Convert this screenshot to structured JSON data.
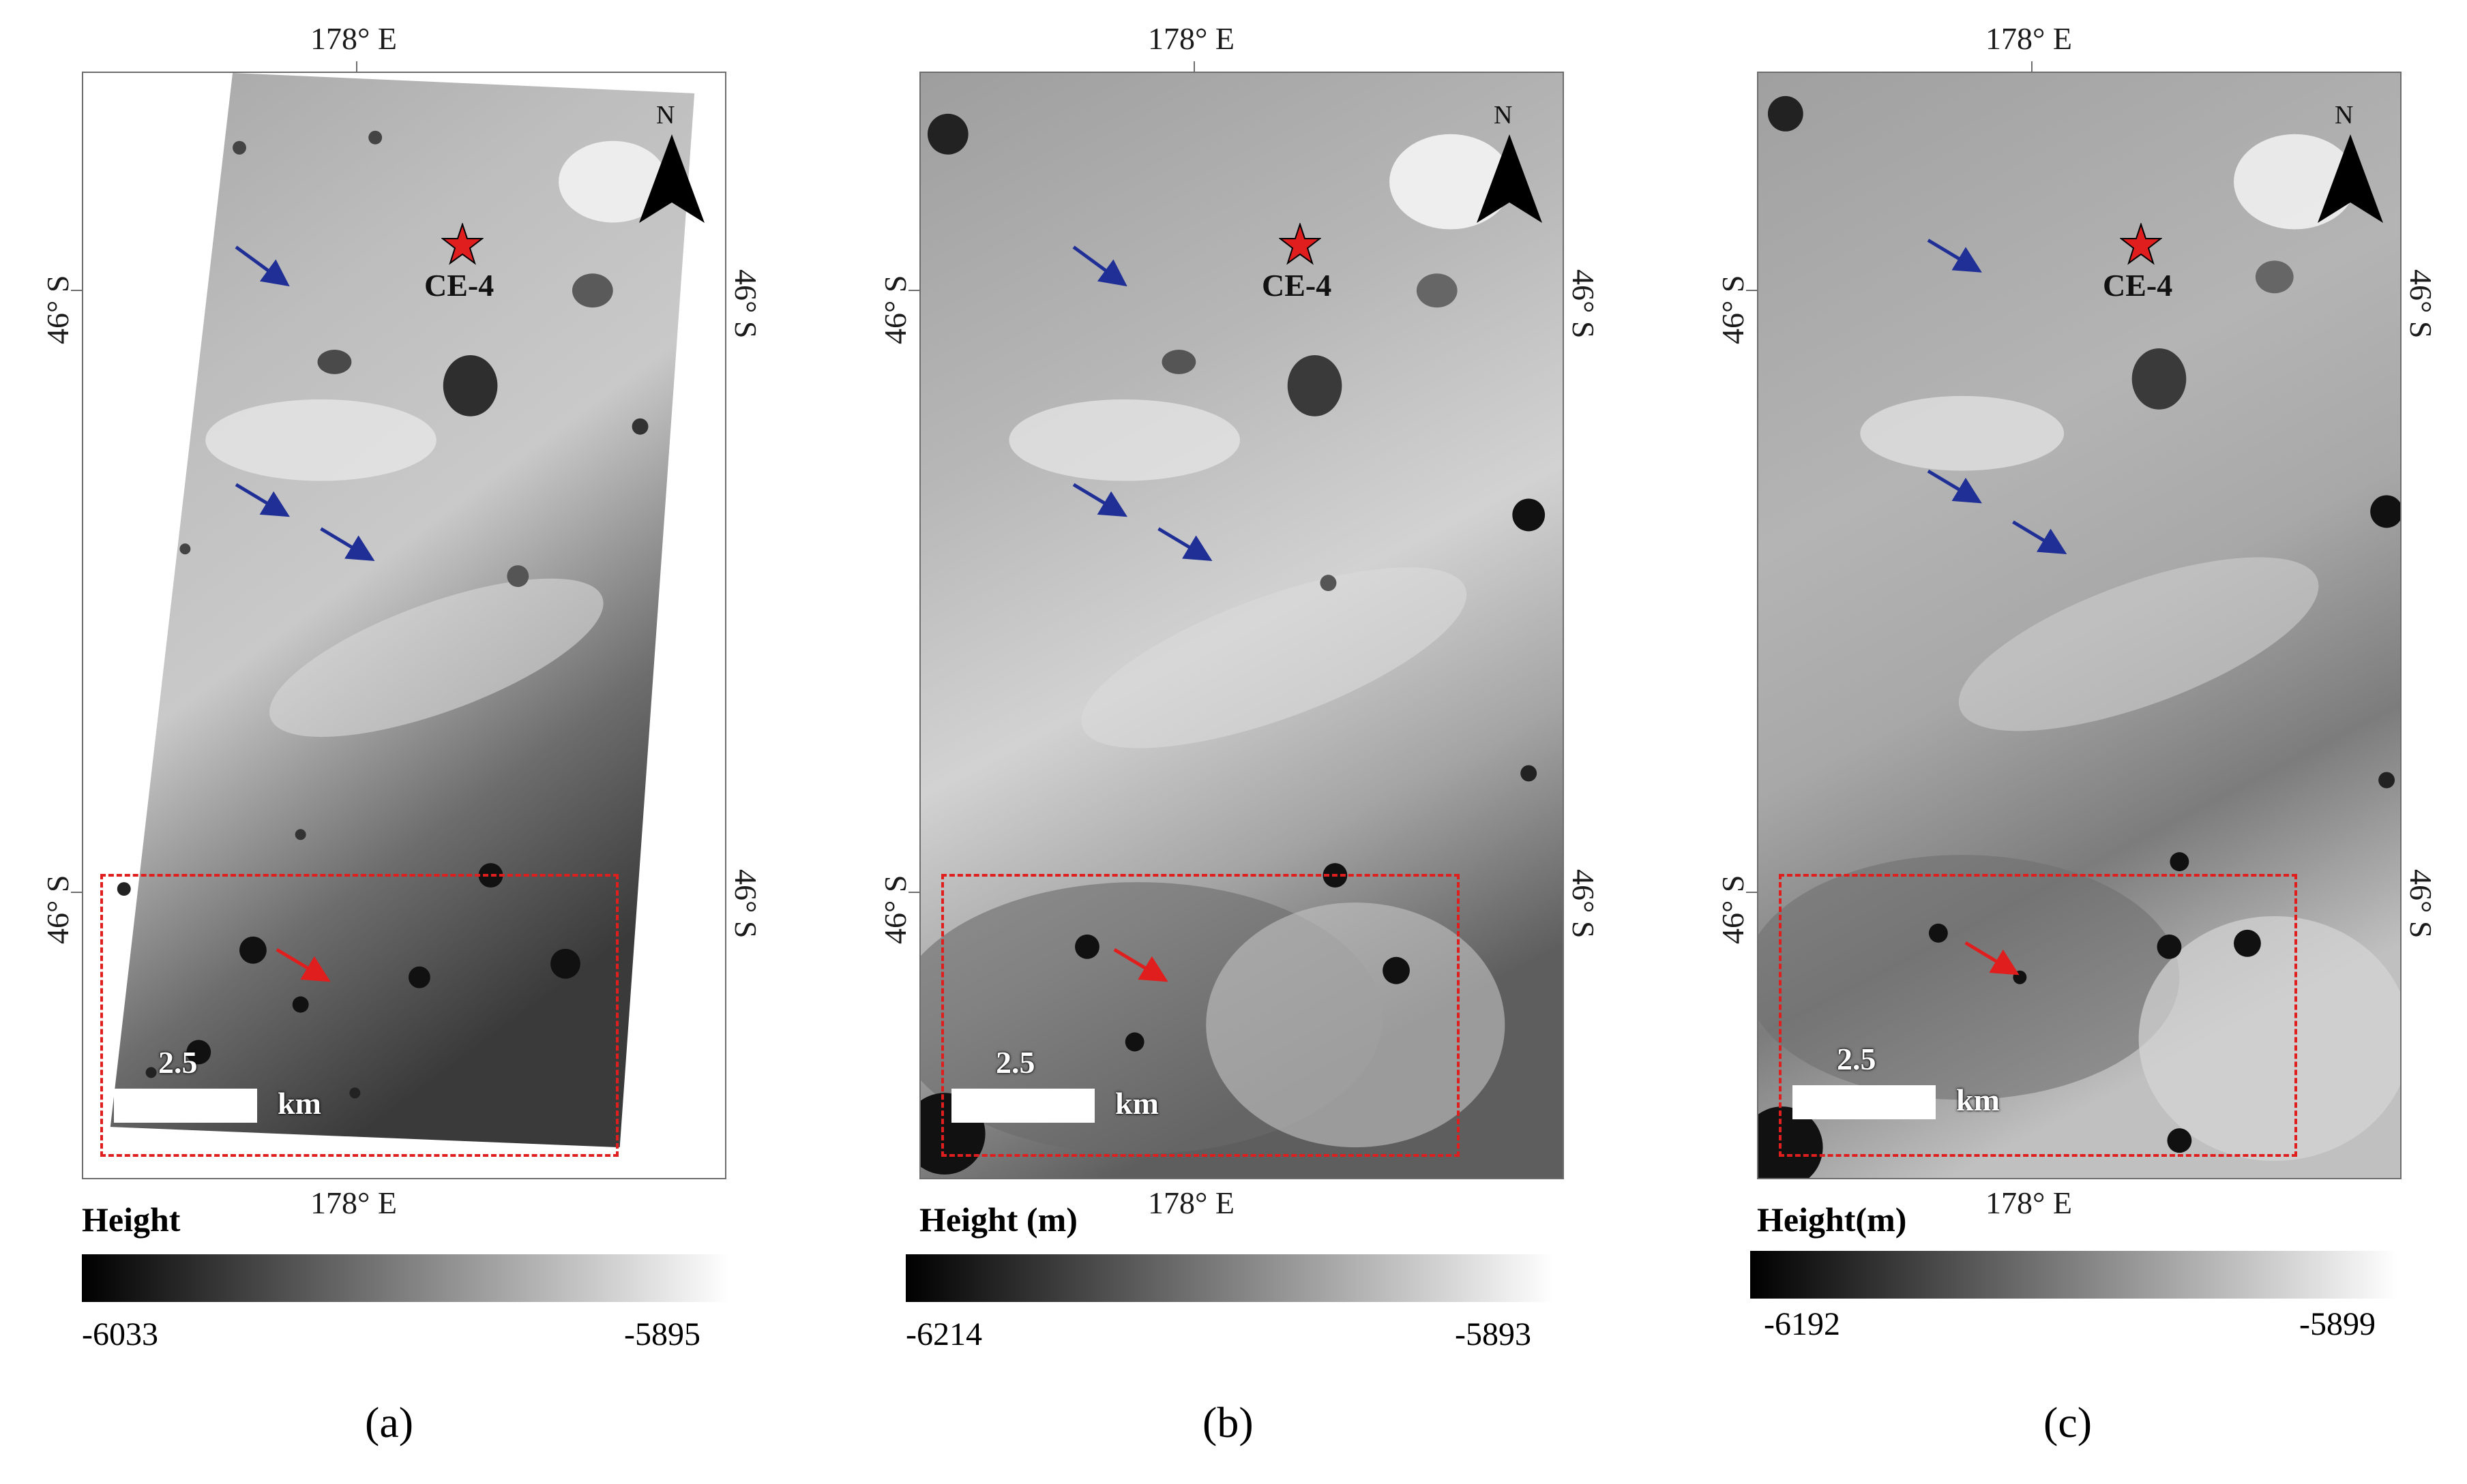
{
  "panels": [
    {
      "id": "a",
      "label": "(a)",
      "top_lon": "178° E",
      "bottom_lon": "178° E",
      "left_lat_upper": "46° S",
      "left_lat_lower": "46° S",
      "right_lat_upper": "46° S",
      "right_lat_lower": "46° S",
      "landing_site": "CE-4",
      "north": "N",
      "scale_value": "2.5",
      "scale_unit": "km",
      "legend_title": "Height",
      "legend_min": "-6033",
      "legend_max": "-5895",
      "colors": {
        "ramp_start": "#000000",
        "ramp_end": "#ffffff",
        "roi": "#e01e1e",
        "arrow_blue": "#1f2f96",
        "arrow_red": "#e01e1e",
        "star": "#e01e1e"
      }
    },
    {
      "id": "b",
      "label": "(b)",
      "top_lon": "178° E",
      "bottom_lon": "178° E",
      "left_lat_upper": "46° S",
      "left_lat_lower": "46° S",
      "right_lat_upper": "46° S",
      "right_lat_lower": "46° S",
      "landing_site": "CE-4",
      "north": "N",
      "scale_value": "2.5",
      "scale_unit": "km",
      "legend_title": "Height (m)",
      "legend_min": "-6214",
      "legend_max": "-5893",
      "colors": {
        "ramp_start": "#000000",
        "ramp_end": "#ffffff",
        "roi": "#e01e1e",
        "arrow_blue": "#1f2f96",
        "arrow_red": "#e01e1e",
        "star": "#e01e1e"
      }
    },
    {
      "id": "c",
      "label": "(c)",
      "top_lon": "178° E",
      "bottom_lon": "178° E",
      "left_lat_upper": "46° S",
      "left_lat_lower": "46° S",
      "right_lat_upper": "46° S",
      "right_lat_lower": "46° S",
      "landing_site": "CE-4",
      "north": "N",
      "scale_value": "2.5",
      "scale_unit": "km",
      "legend_title": "Height(m)",
      "legend_min": "-6192",
      "legend_max": "-5899",
      "colors": {
        "ramp_start": "#000000",
        "ramp_end": "#ffffff",
        "roi": "#e01e1e",
        "arrow_blue": "#1f2f96",
        "arrow_red": "#e01e1e",
        "star": "#e01e1e"
      }
    }
  ]
}
